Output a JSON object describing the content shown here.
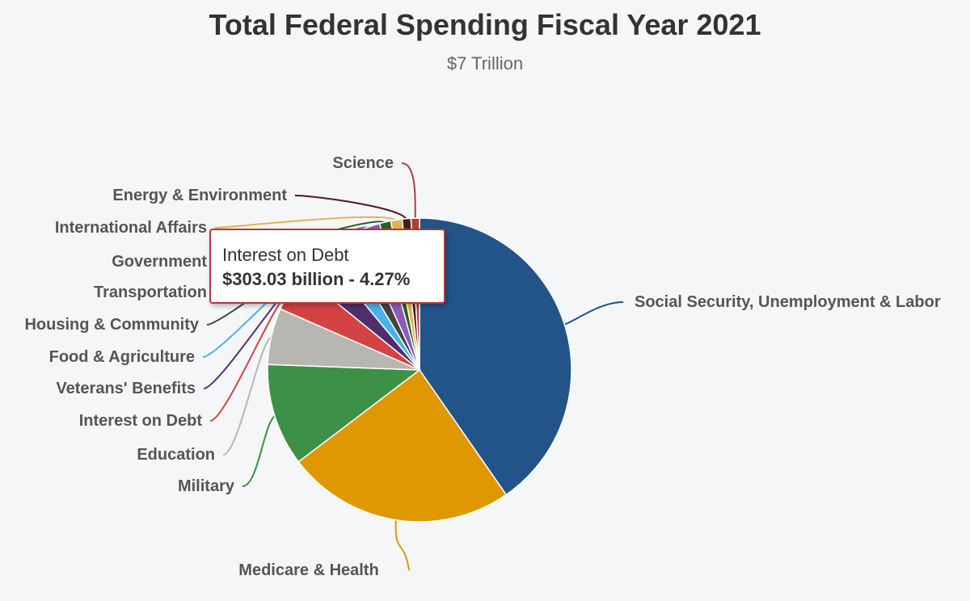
{
  "chart_data": {
    "type": "pie",
    "title": "Total Federal Spending Fiscal Year 2021",
    "subtitle": "$7 Trillion",
    "slices": [
      {
        "label": "Social Security, Unemployment & Labor",
        "percent": 40.3,
        "color": "#22548a"
      },
      {
        "label": "Medicare & Health",
        "percent": 24.3,
        "color": "#e09800"
      },
      {
        "label": "Military",
        "percent": 10.9,
        "color": "#3d9147"
      },
      {
        "label": "Education",
        "percent": 6.0,
        "color": "#b8b6b1"
      },
      {
        "label": "Interest on Debt",
        "percent": 4.27,
        "color": "#d34343"
      },
      {
        "label": "Veterans' Benefits",
        "percent": 3.1,
        "color": "#4e2f6e"
      },
      {
        "label": "Food & Agriculture",
        "percent": 2.4,
        "color": "#47b3ec"
      },
      {
        "label": "Housing & Community",
        "percent": 1.9,
        "color": "#444444"
      },
      {
        "label": "Transportation",
        "percent": 2.5,
        "color": "#8d5cb7"
      },
      {
        "label": "Government",
        "percent": 1.2,
        "color": "#2e5c2a"
      },
      {
        "label": "International Affairs",
        "percent": 1.2,
        "color": "#e0b450"
      },
      {
        "label": "Energy & Environment",
        "percent": 0.93,
        "color": "#4a1a1a"
      },
      {
        "label": "Science",
        "percent": 0.9,
        "color": "#b33b3b"
      }
    ],
    "tooltip": {
      "label": "Interest on Debt",
      "value": "$303.03 billion - 4.27%"
    }
  }
}
